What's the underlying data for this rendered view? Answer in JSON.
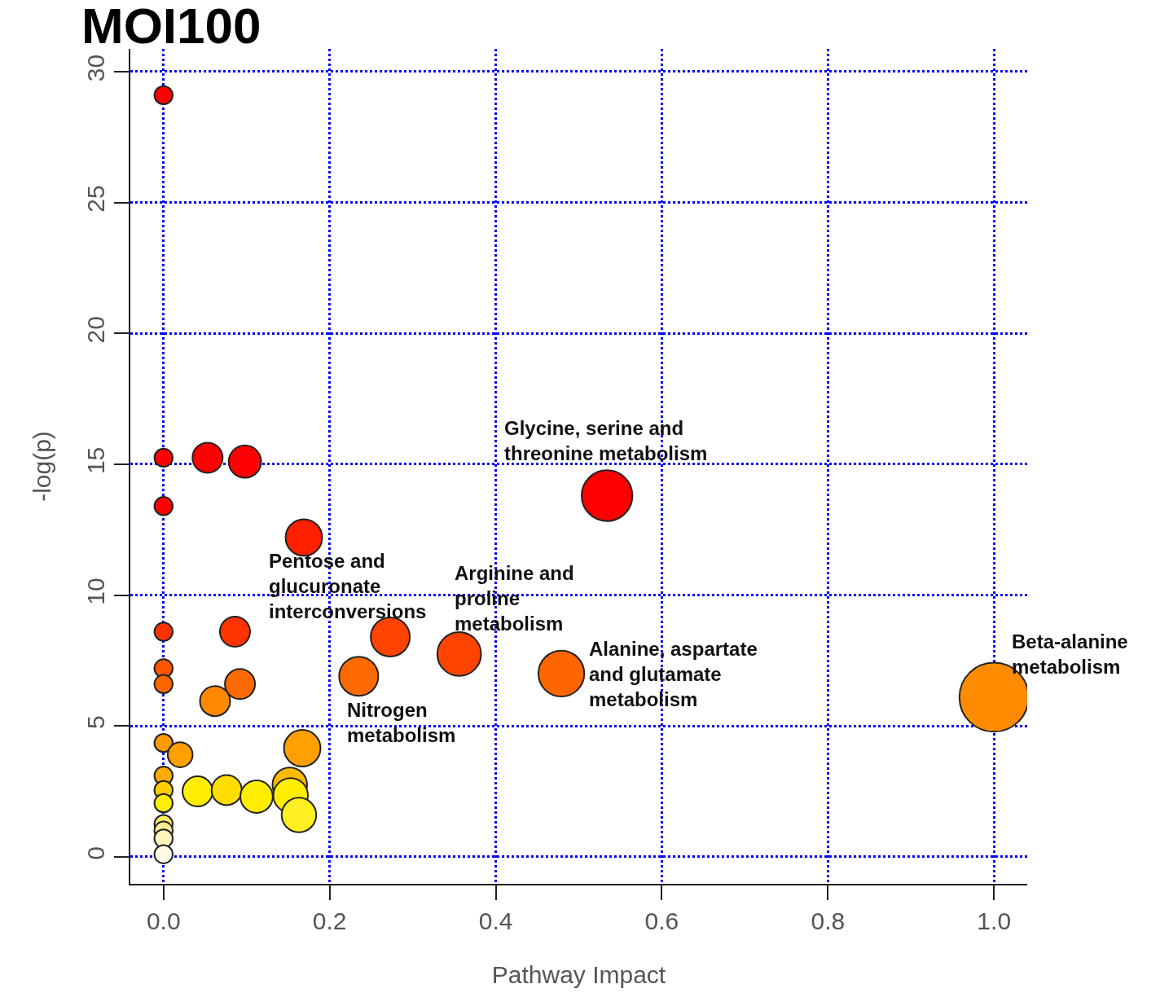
{
  "chart_data": {
    "type": "bubble",
    "title": "MOI100",
    "xlabel": "Pathway Impact",
    "ylabel": "-log(p)",
    "x": [
      0,
      0,
      0.053,
      0.098,
      0,
      0.534,
      0.169,
      0,
      0.086,
      0.273,
      0.356,
      0,
      0,
      0.092,
      0.062,
      0.235,
      0.479,
      1.0,
      0,
      0.02,
      0.167,
      0,
      0,
      0,
      0.041,
      0.076,
      0.112,
      0.152,
      0.153,
      0.163,
      0,
      0,
      0,
      0
    ],
    "values": [
      29.1,
      15.25,
      15.25,
      15.1,
      13.4,
      13.8,
      12.2,
      8.6,
      8.6,
      8.4,
      7.75,
      7.2,
      6.6,
      6.6,
      5.95,
      6.9,
      7.0,
      6.1,
      4.35,
      3.9,
      4.15,
      3.1,
      2.55,
      2.05,
      2.5,
      2.55,
      2.3,
      2.75,
      2.35,
      1.6,
      1.25,
      1.0,
      0.7,
      0.1
    ],
    "sizes": [
      0.07,
      0.07,
      0.19,
      0.22,
      0.07,
      0.54,
      0.28,
      0.07,
      0.19,
      0.32,
      0.4,
      0.07,
      0.07,
      0.19,
      0.19,
      0.32,
      0.44,
      1,
      0.07,
      0.13,
      0.28,
      0.07,
      0.07,
      0.07,
      0.19,
      0.19,
      0.22,
      0.25,
      0.25,
      0.25,
      0.07,
      0.07,
      0.07,
      0.07
    ],
    "colors": [
      "#ff0000",
      "#ff0000",
      "#ff0000",
      "#ff0000",
      "#ff0000",
      "#ff0000",
      "#ff2000",
      "#ff3300",
      "#ff3300",
      "#ff4400",
      "#ff4400",
      "#ff5500",
      "#ff6600",
      "#ff6a00",
      "#ff8800",
      "#ff6a00",
      "#ff6600",
      "#ff8c00",
      "#ff9900",
      "#ffa000",
      "#ffa000",
      "#ffaa00",
      "#ffcc00",
      "#ffee00",
      "#ffee00",
      "#ffdd00",
      "#ffee00",
      "#ffbb00",
      "#ffee00",
      "#ffee22",
      "#ffee66",
      "#ffee99",
      "#fff5bb",
      "#fffbe6"
    ],
    "xlim": [
      -0.04,
      1.04
    ],
    "ylim": [
      -1.03,
      30.87
    ],
    "xticks": [
      {
        "value": 0,
        "label": "0.0"
      },
      {
        "value": 0.2,
        "label": "0.2"
      },
      {
        "value": 0.4,
        "label": "0.4"
      },
      {
        "value": 0.6,
        "label": "0.6"
      },
      {
        "value": 0.8,
        "label": "0.8"
      },
      {
        "value": 1,
        "label": "1.0"
      }
    ],
    "yticks": [
      0,
      5,
      10,
      15,
      20,
      25,
      30
    ],
    "grid": true,
    "annotations": [
      {
        "text": "Glycine, serine and\nthreonine metabolism",
        "x": 0.534,
        "y": 13.8
      },
      {
        "text": "Pentose and\nglucuronate\ninterconversions",
        "x": 0.169,
        "y": 12.2
      },
      {
        "text": "Arginine and\nproline\nmetabolism",
        "x": 0.356,
        "y": 7.75
      },
      {
        "text": "Alanine, aspartate\nand glutamate\nmetabolism",
        "x": 0.479,
        "y": 7.0
      },
      {
        "text": "Nitrogen\nmetabolism",
        "x": 0.235,
        "y": 6.9
      },
      {
        "text": "Beta-alanine\nmetabolism",
        "x": 1.0,
        "y": 6.1
      }
    ]
  }
}
